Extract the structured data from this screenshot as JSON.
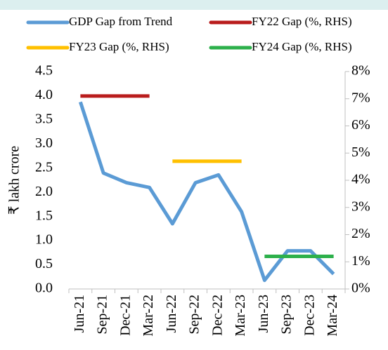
{
  "chart_data": {
    "type": "line",
    "y_label": "₹ lakh crore",
    "categories": [
      "Jun-21",
      "Sep-21",
      "Dec-21",
      "Mar-22",
      "Jun-22",
      "Sep-22",
      "Dec-22",
      "Mar-23",
      "Jun-23",
      "Sep-23",
      "Dec-23",
      "Mar-24"
    ],
    "series": [
      {
        "name": "GDP Gap from Trend",
        "color": "#5b9bd5",
        "values": [
          3.87,
          2.4,
          2.2,
          2.1,
          1.35,
          2.2,
          2.36,
          1.6,
          0.18,
          0.79,
          0.79,
          0.31
        ]
      },
      {
        "name": "FY22 Gap (%, RHS)",
        "color": "#b91c1c",
        "axis": "y2",
        "values": [
          7.1,
          7.1,
          7.1,
          7.1,
          null,
          null,
          null,
          null,
          null,
          null,
          null,
          null
        ]
      },
      {
        "name": "FY23 Gap (%, RHS)",
        "color": "#ffc000",
        "axis": "y2",
        "values": [
          null,
          null,
          null,
          null,
          4.7,
          4.7,
          4.7,
          4.7,
          null,
          null,
          null,
          null
        ]
      },
      {
        "name": "FY24 Gap (%, RHS)",
        "color": "#2db04b",
        "axis": "y2",
        "values": [
          null,
          null,
          null,
          null,
          null,
          null,
          null,
          null,
          1.2,
          1.2,
          1.2,
          1.2
        ]
      }
    ],
    "ylim": [
      0,
      4.5
    ],
    "yticks": [
      {
        "value": 0,
        "label": "0.0"
      },
      0.5,
      {
        "value": 1,
        "label": "1.0"
      },
      1.5,
      {
        "value": 2,
        "label": "2.0"
      },
      2.5,
      {
        "value": 3,
        "label": "3.0"
      },
      3.5,
      {
        "value": 4,
        "label": "4.0"
      },
      4.5
    ],
    "y2lim": [
      0,
      8
    ],
    "y2ticks": [
      {
        "value": 0,
        "label": "0%"
      },
      {
        "value": 1,
        "label": "1%"
      },
      {
        "value": 2,
        "label": "2%"
      },
      {
        "value": 3,
        "label": "3%"
      },
      {
        "value": 4,
        "label": "4%"
      },
      {
        "value": 5,
        "label": "5%"
      },
      {
        "value": 6,
        "label": "6%"
      },
      {
        "value": 7,
        "label": "7%"
      },
      {
        "value": 8,
        "label": "8%"
      }
    ],
    "grid": false
  }
}
